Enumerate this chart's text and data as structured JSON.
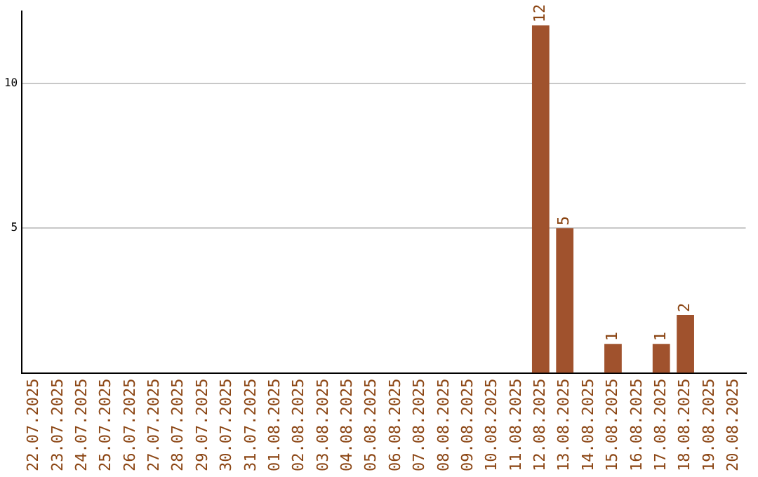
{
  "chart_data": {
    "type": "bar",
    "categories": [
      "22.07.2025",
      "23.07.2025",
      "24.07.2025",
      "25.07.2025",
      "26.07.2025",
      "27.07.2025",
      "28.07.2025",
      "29.07.2025",
      "30.07.2025",
      "31.07.2025",
      "01.08.2025",
      "02.08.2025",
      "03.08.2025",
      "04.08.2025",
      "05.08.2025",
      "06.08.2025",
      "07.08.2025",
      "08.08.2025",
      "09.08.2025",
      "10.08.2025",
      "11.08.2025",
      "12.08.2025",
      "13.08.2025",
      "14.08.2025",
      "15.08.2025",
      "16.08.2025",
      "17.08.2025",
      "18.08.2025",
      "19.08.2025",
      "20.08.2025"
    ],
    "values": [
      0,
      0,
      0,
      0,
      0,
      0,
      0,
      0,
      0,
      0,
      0,
      0,
      0,
      0,
      0,
      0,
      0,
      0,
      0,
      0,
      0,
      12,
      5,
      0,
      1,
      0,
      1,
      2,
      0,
      0
    ],
    "value_labels": [
      null,
      null,
      null,
      null,
      null,
      null,
      null,
      null,
      null,
      null,
      null,
      null,
      null,
      null,
      null,
      null,
      null,
      null,
      null,
      null,
      null,
      "12",
      "5",
      null,
      "1",
      null,
      "1",
      "2",
      null,
      null
    ],
    "color": "#a0522d",
    "ylim": [
      0,
      12.5
    ],
    "yticks": [
      5,
      10
    ],
    "grid": "y",
    "legend": false
  }
}
